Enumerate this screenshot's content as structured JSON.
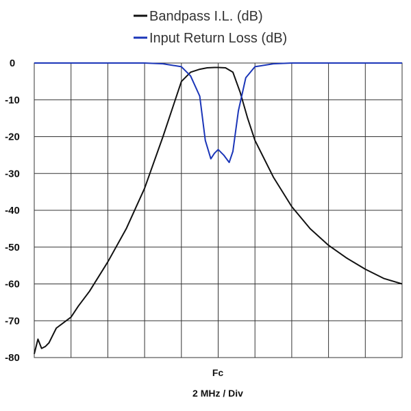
{
  "chart_data": {
    "type": "line",
    "xlabel": "2 MHz / Div",
    "x_center_label": "Fc",
    "x_divisions": 10,
    "xlim": [
      -5,
      5
    ],
    "ylim": [
      -80,
      0
    ],
    "y_ticks": [
      "0",
      "-10",
      "-20",
      "-30",
      "-40",
      "-50",
      "-60",
      "-70",
      "-80"
    ],
    "grid": true,
    "legend_position": "top-center",
    "series": [
      {
        "name": "Bandpass I.L. (dB)",
        "color": "#111111",
        "x": [
          -5.0,
          -4.9,
          -4.8,
          -4.7,
          -4.6,
          -4.5,
          -4.4,
          -4.2,
          -4.0,
          -3.8,
          -3.5,
          -3.0,
          -2.5,
          -2.0,
          -1.5,
          -1.0,
          -0.75,
          -0.5,
          -0.3,
          -0.1,
          0.0,
          0.2,
          0.4,
          0.6,
          0.8,
          1.0,
          1.5,
          2.0,
          2.5,
          3.0,
          3.5,
          4.0,
          4.5,
          5.0
        ],
        "y": [
          -79,
          -75,
          -77.5,
          -77,
          -76,
          -74,
          -72,
          -70.5,
          -69,
          -66,
          -62,
          -54,
          -45,
          -34,
          -20,
          -5,
          -2.5,
          -1.7,
          -1.3,
          -1.2,
          -1.2,
          -1.3,
          -2.5,
          -8,
          -15,
          -21,
          -31,
          -39,
          -45,
          -49.5,
          -53,
          -56,
          -58.5,
          -60
        ]
      },
      {
        "name": "Input Return Loss (dB)",
        "color": "#1a35b8",
        "x": [
          -5.0,
          -2.0,
          -1.5,
          -1.0,
          -0.75,
          -0.5,
          -0.35,
          -0.2,
          -0.1,
          0.0,
          0.15,
          0.3,
          0.4,
          0.55,
          0.75,
          1.0,
          1.5,
          2.0,
          5.0
        ],
        "y": [
          0,
          0,
          -0.2,
          -1,
          -3.5,
          -9,
          -21,
          -26,
          -24.5,
          -23.5,
          -25,
          -27,
          -24,
          -13,
          -4,
          -1,
          -0.2,
          0,
          0
        ]
      }
    ]
  }
}
